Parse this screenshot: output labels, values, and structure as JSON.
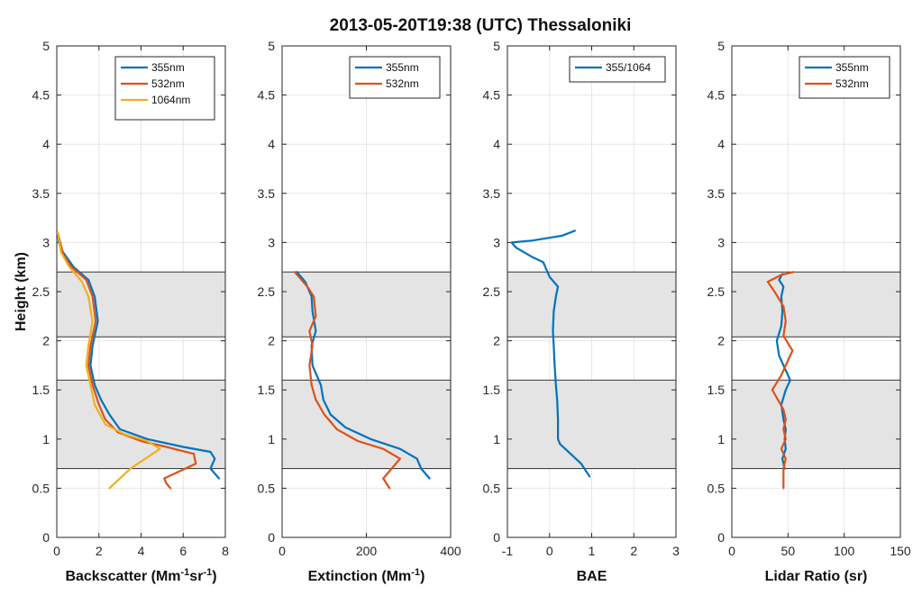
{
  "figure_title": "2013-05-20T19:38 (UTC) Thessaloniki",
  "colors": {
    "c355": "#0072BD",
    "c532": "#D95319",
    "c1064": "#EDB120"
  },
  "layers": [
    {
      "bottom": 0.7,
      "top": 1.6
    },
    {
      "bottom": 2.04,
      "top": 2.7
    }
  ],
  "chart_data": [
    {
      "type": "line",
      "xlabel_main": "Backscatter (Mm",
      "xlabel_sup1": "-1",
      "xlabel_mid": "sr",
      "xlabel_sup2": "-1",
      "xlabel_end": ")",
      "ylabel": "Height (km)",
      "xlim": [
        0,
        8
      ],
      "ylim": [
        0,
        5
      ],
      "xticks": [
        0,
        2,
        4,
        6,
        8
      ],
      "yticks": [
        0,
        0.5,
        1,
        1.5,
        2,
        2.5,
        3,
        3.5,
        4,
        4.5,
        5
      ],
      "ytick_labels": [
        "0",
        "0.5",
        "1",
        "1.5",
        "2",
        "2.5",
        "3",
        "3.5",
        "4",
        "4.5",
        "5"
      ],
      "legend": "top-right",
      "series": [
        {
          "name": "355nm",
          "color_key": "c355",
          "points": [
            [
              7.7,
              0.6
            ],
            [
              7.3,
              0.7
            ],
            [
              7.5,
              0.8
            ],
            [
              7.3,
              0.87
            ],
            [
              6.0,
              0.92
            ],
            [
              4.3,
              1.0
            ],
            [
              3.0,
              1.1
            ],
            [
              2.5,
              1.25
            ],
            [
              2.1,
              1.4
            ],
            [
              1.8,
              1.55
            ],
            [
              1.6,
              1.75
            ],
            [
              1.7,
              1.95
            ],
            [
              1.95,
              2.2
            ],
            [
              1.8,
              2.45
            ],
            [
              1.5,
              2.62
            ],
            [
              0.8,
              2.75
            ],
            [
              0.3,
              2.9
            ],
            [
              0.1,
              3.0
            ],
            [
              0.05,
              3.1
            ]
          ]
        },
        {
          "name": "532nm",
          "color_key": "c532",
          "points": [
            [
              5.4,
              0.5
            ],
            [
              5.2,
              0.55
            ],
            [
              5.1,
              0.6
            ],
            [
              6.6,
              0.75
            ],
            [
              6.5,
              0.85
            ],
            [
              5.2,
              0.92
            ],
            [
              4.0,
              0.98
            ],
            [
              2.9,
              1.07
            ],
            [
              2.3,
              1.2
            ],
            [
              2.0,
              1.35
            ],
            [
              1.7,
              1.55
            ],
            [
              1.5,
              1.75
            ],
            [
              1.6,
              1.95
            ],
            [
              1.85,
              2.2
            ],
            [
              1.7,
              2.45
            ],
            [
              1.4,
              2.62
            ],
            [
              0.7,
              2.75
            ],
            [
              0.3,
              2.88
            ],
            [
              0.05,
              3.1
            ]
          ]
        },
        {
          "name": "1064nm",
          "color_key": "c1064",
          "points": [
            [
              2.5,
              0.5
            ],
            [
              3.5,
              0.7
            ],
            [
              4.9,
              0.9
            ],
            [
              4.3,
              0.98
            ],
            [
              3.2,
              1.05
            ],
            [
              2.3,
              1.15
            ],
            [
              1.8,
              1.35
            ],
            [
              1.6,
              1.55
            ],
            [
              1.4,
              1.75
            ],
            [
              1.5,
              1.95
            ],
            [
              1.7,
              2.2
            ],
            [
              1.5,
              2.45
            ],
            [
              1.2,
              2.6
            ],
            [
              0.6,
              2.75
            ],
            [
              0.2,
              2.9
            ],
            [
              0.05,
              3.1
            ]
          ]
        }
      ]
    },
    {
      "type": "line",
      "xlabel_main": "Extinction (Mm",
      "xlabel_sup1": "-1",
      "xlabel_end": ")",
      "xlim": [
        0,
        400
      ],
      "ylim": [
        0,
        5
      ],
      "xticks": [
        0,
        200,
        400
      ],
      "yticks": [
        0,
        0.5,
        1,
        1.5,
        2,
        2.5,
        3,
        3.5,
        4,
        4.5,
        5
      ],
      "ytick_labels": [
        "0",
        "0.5",
        "1",
        "1.5",
        "2",
        "2.5",
        "3",
        "3.5",
        "4",
        "4.5",
        "5"
      ],
      "legend": "top-right",
      "series": [
        {
          "name": "355nm",
          "color_key": "c355",
          "points": [
            [
              350,
              0.6
            ],
            [
              330,
              0.7
            ],
            [
              320,
              0.8
            ],
            [
              280,
              0.9
            ],
            [
              210,
              1.0
            ],
            [
              150,
              1.12
            ],
            [
              115,
              1.25
            ],
            [
              98,
              1.4
            ],
            [
              92,
              1.55
            ],
            [
              72,
              1.75
            ],
            [
              70,
              1.95
            ],
            [
              80,
              2.1
            ],
            [
              72,
              2.3
            ],
            [
              70,
              2.45
            ],
            [
              55,
              2.6
            ],
            [
              35,
              2.7
            ]
          ]
        },
        {
          "name": "532nm",
          "color_key": "c532",
          "points": [
            [
              255,
              0.5
            ],
            [
              240,
              0.6
            ],
            [
              260,
              0.7
            ],
            [
              280,
              0.8
            ],
            [
              240,
              0.9
            ],
            [
              180,
              0.98
            ],
            [
              130,
              1.1
            ],
            [
              100,
              1.25
            ],
            [
              80,
              1.4
            ],
            [
              70,
              1.55
            ],
            [
              65,
              1.75
            ],
            [
              72,
              1.95
            ],
            [
              65,
              2.1
            ],
            [
              80,
              2.25
            ],
            [
              75,
              2.45
            ],
            [
              60,
              2.55
            ],
            [
              30,
              2.7
            ]
          ]
        }
      ]
    },
    {
      "type": "line",
      "xlabel_main": "BAE",
      "xlim": [
        -1,
        3
      ],
      "ylim": [
        0,
        5
      ],
      "xticks": [
        -1,
        0,
        1,
        2,
        3
      ],
      "yticks": [
        0,
        0.5,
        1,
        1.5,
        2,
        2.5,
        3,
        3.5,
        4,
        4.5,
        5
      ],
      "ytick_labels": [
        "0",
        "0.5",
        "1",
        "1.5",
        "2",
        "2.5",
        "3",
        "3.5",
        "4",
        "4.5",
        "5"
      ],
      "legend": "top-right",
      "series": [
        {
          "name": "355/1064",
          "color_key": "c355",
          "points": [
            [
              0.95,
              0.62
            ],
            [
              0.75,
              0.75
            ],
            [
              0.5,
              0.85
            ],
            [
              0.25,
              0.95
            ],
            [
              0.2,
              1.0
            ],
            [
              0.2,
              1.2
            ],
            [
              0.18,
              1.4
            ],
            [
              0.15,
              1.55
            ],
            [
              0.12,
              1.75
            ],
            [
              0.1,
              1.95
            ],
            [
              0.08,
              2.1
            ],
            [
              0.1,
              2.3
            ],
            [
              0.15,
              2.45
            ],
            [
              0.2,
              2.55
            ],
            [
              0.0,
              2.65
            ],
            [
              -0.15,
              2.8
            ],
            [
              -0.4,
              2.85
            ],
            [
              -0.8,
              2.95
            ],
            [
              -0.9,
              3.0
            ],
            [
              -0.4,
              3.02
            ],
            [
              0.3,
              3.07
            ],
            [
              0.6,
              3.12
            ]
          ]
        }
      ]
    },
    {
      "type": "line",
      "xlabel_main": "Lidar Ratio (sr)",
      "xlim": [
        0,
        150
      ],
      "ylim": [
        0,
        5
      ],
      "xticks": [
        0,
        50,
        100,
        150
      ],
      "yticks": [
        0,
        0.5,
        1,
        1.5,
        2,
        2.5,
        3,
        3.5,
        4,
        4.5,
        5
      ],
      "ytick_labels": [
        "0",
        "0.5",
        "1",
        "1.5",
        "2",
        "2.5",
        "3",
        "3.5",
        "4",
        "4.5",
        "5"
      ],
      "legend": "top-right",
      "series": [
        {
          "name": "355nm",
          "color_key": "c355",
          "points": [
            [
              47,
              0.7
            ],
            [
              45,
              0.8
            ],
            [
              48,
              0.9
            ],
            [
              47,
              1.0
            ],
            [
              48,
              1.1
            ],
            [
              46,
              1.2
            ],
            [
              44,
              1.35
            ],
            [
              48,
              1.5
            ],
            [
              52,
              1.6
            ],
            [
              48,
              1.7
            ],
            [
              42,
              1.85
            ],
            [
              40,
              2.0
            ],
            [
              44,
              2.15
            ],
            [
              45,
              2.3
            ],
            [
              44,
              2.45
            ],
            [
              46,
              2.55
            ],
            [
              42,
              2.62
            ],
            [
              45,
              2.68
            ]
          ]
        },
        {
          "name": "532nm",
          "color_key": "c532",
          "points": [
            [
              46,
              0.5
            ],
            [
              46,
              0.6
            ],
            [
              46,
              0.7
            ],
            [
              48,
              0.8
            ],
            [
              44,
              0.9
            ],
            [
              48,
              1.0
            ],
            [
              46,
              1.1
            ],
            [
              48,
              1.2
            ],
            [
              46,
              1.3
            ],
            [
              36,
              1.5
            ],
            [
              44,
              1.65
            ],
            [
              50,
              1.8
            ],
            [
              54,
              1.9
            ],
            [
              46,
              2.05
            ],
            [
              48,
              2.2
            ],
            [
              46,
              2.35
            ],
            [
              38,
              2.5
            ],
            [
              32,
              2.6
            ],
            [
              44,
              2.67
            ],
            [
              55,
              2.7
            ]
          ]
        }
      ]
    }
  ]
}
